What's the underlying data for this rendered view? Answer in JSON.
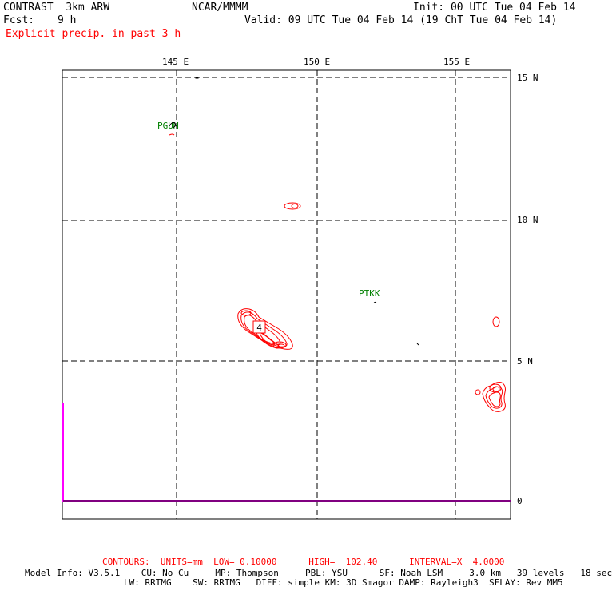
{
  "header": {
    "model": "CONTRAST  3km ARW",
    "center": "NCAR/MMMM",
    "init": "Init: 00 UTC Tue 04 Feb 14",
    "fcst_label": "Fcst:",
    "fcst_value": "9 h",
    "valid": "Valid: 09 UTC Tue 04 Feb 14 (19 ChT Tue 04 Feb 14)",
    "field": "Explicit precip. in past 3 h"
  },
  "map": {
    "lon_labels": [
      "145 E",
      "150 E",
      "155 E"
    ],
    "lat_labels": [
      "15 N",
      "10 N",
      "5 N",
      "0"
    ],
    "stations": [
      {
        "id": "PGUM"
      },
      {
        "id": "PTKK"
      }
    ],
    "highlight_value": "4",
    "colors": {
      "contour": "#ff0000",
      "station": "#008000",
      "terrain": "#ff00ff",
      "grid": "#000000"
    }
  },
  "footer": {
    "contours": "CONTOURS:  UNITS=mm  LOW= 0.10000      HIGH=  102.40      INTERVAL=X  4.0000",
    "model_info": "Model Info: V3.5.1    CU: No Cu     MP: Thompson     PBL: YSU      SF: Noah LSM     3.0 km   39 levels   18 sec",
    "physics": "LW: RRTMG    SW: RRTMG   DIFF: simple KM: 3D Smagor DAMP: Rayleigh3  SFLAY: Rev MM5"
  }
}
